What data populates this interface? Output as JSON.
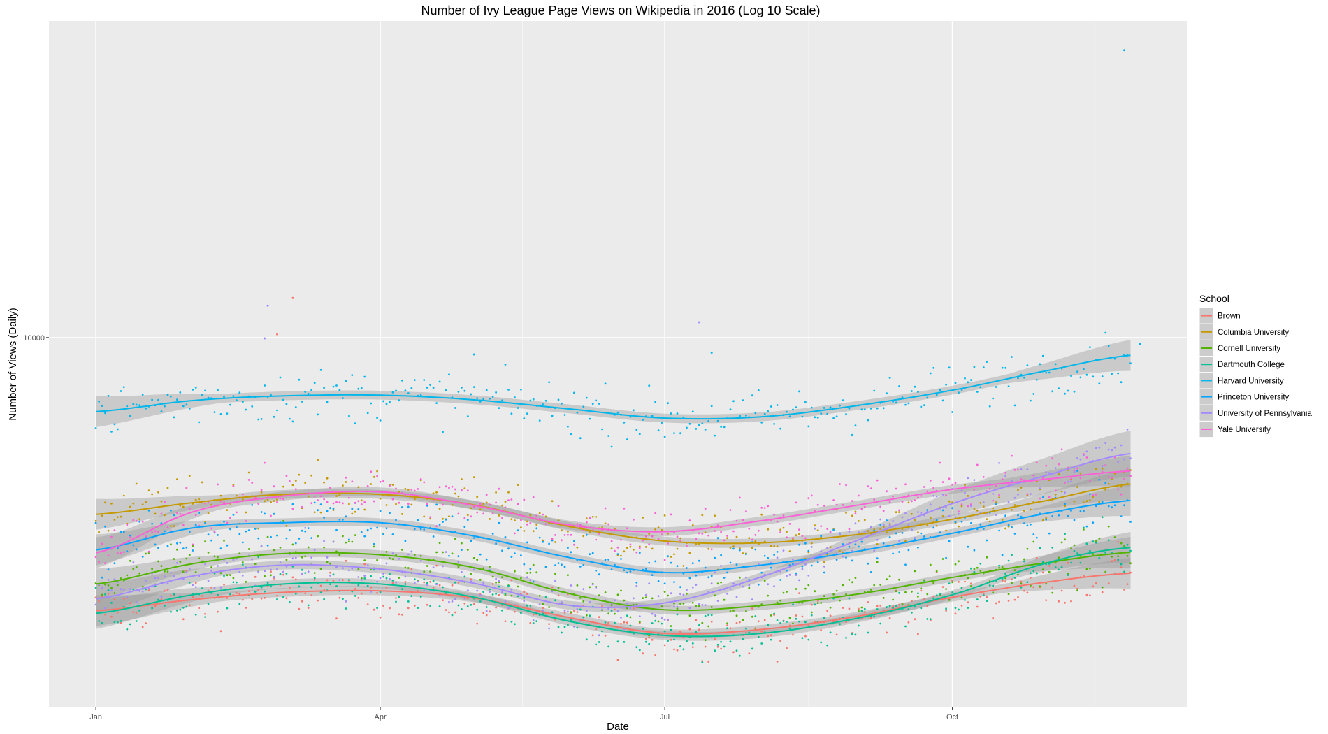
{
  "chart_data": {
    "type": "scatter",
    "title": "Number of Ivy League Page Views on Wikipedia in 2016 (Log 10 Scale)",
    "xlabel": "Date",
    "ylabel": "Number of Views (Daily)",
    "y_scale": "log10",
    "x_ticks": [
      {
        "date": "2016-01-01",
        "label": "Jan"
      },
      {
        "date": "2016-04-01",
        "label": "Apr"
      },
      {
        "date": "2016-07-01",
        "label": "Jul"
      },
      {
        "date": "2016-10-01",
        "label": "Oct"
      }
    ],
    "y_ticks": [
      10000
    ],
    "xlim": [
      "2015-12-17",
      "2016-12-15"
    ],
    "ylim": [
      1000,
      72000
    ],
    "grid": true,
    "legend_position": "right",
    "legend_title": "School",
    "smoother": "loess with confidence band",
    "series": [
      {
        "name": "Brown",
        "color": "#F8766D",
        "trend": [
          [
            "2016-01-01",
            1820
          ],
          [
            "2016-02-01",
            1950
          ],
          [
            "2016-03-01",
            2040
          ],
          [
            "2016-04-01",
            2060
          ],
          [
            "2016-05-01",
            1970
          ],
          [
            "2016-06-01",
            1740
          ],
          [
            "2016-07-01",
            1580
          ],
          [
            "2016-08-01",
            1620
          ],
          [
            "2016-09-01",
            1760
          ],
          [
            "2016-10-01",
            1980
          ],
          [
            "2016-11-01",
            2180
          ],
          [
            "2016-11-27",
            2300
          ]
        ]
      },
      {
        "name": "Columbia University",
        "color": "#C49A00",
        "trend": [
          [
            "2016-01-01",
            3320
          ],
          [
            "2016-02-01",
            3570
          ],
          [
            "2016-03-01",
            3760
          ],
          [
            "2016-04-01",
            3760
          ],
          [
            "2016-05-01",
            3520
          ],
          [
            "2016-06-01",
            3070
          ],
          [
            "2016-07-01",
            2810
          ],
          [
            "2016-08-01",
            2780
          ],
          [
            "2016-09-01",
            2930
          ],
          [
            "2016-10-01",
            3220
          ],
          [
            "2016-11-01",
            3630
          ],
          [
            "2016-11-27",
            4010
          ]
        ]
      },
      {
        "name": "Cornell University",
        "color": "#53B400",
        "trend": [
          [
            "2016-01-01",
            2150
          ],
          [
            "2016-02-01",
            2440
          ],
          [
            "2016-03-01",
            2600
          ],
          [
            "2016-04-01",
            2580
          ],
          [
            "2016-05-01",
            2380
          ],
          [
            "2016-06-01",
            2020
          ],
          [
            "2016-07-01",
            1830
          ],
          [
            "2016-08-01",
            1880
          ],
          [
            "2016-09-01",
            2020
          ],
          [
            "2016-10-01",
            2240
          ],
          [
            "2016-11-01",
            2460
          ],
          [
            "2016-11-27",
            2620
          ]
        ]
      },
      {
        "name": "Dartmouth College",
        "color": "#00C094",
        "trend": [
          [
            "2016-01-01",
            1790
          ],
          [
            "2016-02-01",
            2010
          ],
          [
            "2016-03-01",
            2150
          ],
          [
            "2016-04-01",
            2150
          ],
          [
            "2016-05-01",
            1980
          ],
          [
            "2016-06-01",
            1700
          ],
          [
            "2016-07-01",
            1560
          ],
          [
            "2016-08-01",
            1580
          ],
          [
            "2016-09-01",
            1740
          ],
          [
            "2016-10-01",
            2010
          ],
          [
            "2016-11-01",
            2460
          ],
          [
            "2016-11-27",
            2700
          ]
        ]
      },
      {
        "name": "Harvard University",
        "color": "#00B6EB",
        "trend": [
          [
            "2016-01-01",
            6300
          ],
          [
            "2016-02-01",
            6750
          ],
          [
            "2016-03-01",
            6950
          ],
          [
            "2016-04-01",
            6980
          ],
          [
            "2016-05-01",
            6780
          ],
          [
            "2016-06-01",
            6400
          ],
          [
            "2016-07-01",
            6050
          ],
          [
            "2016-08-01",
            6100
          ],
          [
            "2016-09-01",
            6550
          ],
          [
            "2016-10-01",
            7200
          ],
          [
            "2016-11-01",
            8150
          ],
          [
            "2016-11-27",
            8950
          ]
        ]
      },
      {
        "name": "Princeton University",
        "color": "#06A4FF",
        "trend": [
          [
            "2016-01-01",
            2660
          ],
          [
            "2016-02-01",
            3050
          ],
          [
            "2016-03-01",
            3150
          ],
          [
            "2016-04-01",
            3150
          ],
          [
            "2016-05-01",
            2900
          ],
          [
            "2016-06-01",
            2530
          ],
          [
            "2016-07-01",
            2310
          ],
          [
            "2016-08-01",
            2420
          ],
          [
            "2016-09-01",
            2640
          ],
          [
            "2016-10-01",
            2950
          ],
          [
            "2016-11-01",
            3350
          ],
          [
            "2016-11-27",
            3620
          ]
        ]
      },
      {
        "name": "University of Pennsylvania",
        "color": "#A58AFF",
        "trend": [
          [
            "2016-01-01",
            1960
          ],
          [
            "2016-02-01",
            2260
          ],
          [
            "2016-03-01",
            2420
          ],
          [
            "2016-04-01",
            2360
          ],
          [
            "2016-05-01",
            2160
          ],
          [
            "2016-06-01",
            1880
          ],
          [
            "2016-07-01",
            1910
          ],
          [
            "2016-08-01",
            2250
          ],
          [
            "2016-09-01",
            2830
          ],
          [
            "2016-10-01",
            3550
          ],
          [
            "2016-11-01",
            4250
          ],
          [
            "2016-11-27",
            4850
          ]
        ]
      },
      {
        "name": "Yale University",
        "color": "#FB61D7",
        "trend": [
          [
            "2016-01-01",
            2610
          ],
          [
            "2016-02-01",
            3370
          ],
          [
            "2016-03-01",
            3720
          ],
          [
            "2016-04-01",
            3820
          ],
          [
            "2016-05-01",
            3510
          ],
          [
            "2016-06-01",
            3100
          ],
          [
            "2016-07-01",
            2980
          ],
          [
            "2016-08-01",
            3190
          ],
          [
            "2016-09-01",
            3520
          ],
          [
            "2016-10-01",
            3880
          ],
          [
            "2016-11-01",
            4140
          ],
          [
            "2016-11-27",
            4350
          ]
        ]
      }
    ],
    "outliers": [
      {
        "series": "Harvard University",
        "date": "2016-11-25",
        "value": 60000
      },
      {
        "series": "University of Pennsylvania",
        "date": "2016-02-25",
        "value": 12200
      },
      {
        "series": "Brown",
        "date": "2016-03-04",
        "value": 12800
      },
      {
        "series": "Brown",
        "date": "2016-02-28",
        "value": 10200
      },
      {
        "series": "University of Pennsylvania",
        "date": "2016-02-24",
        "value": 9950
      },
      {
        "series": "University of Pennsylvania",
        "date": "2016-07-12",
        "value": 11000
      },
      {
        "series": "Harvard University",
        "date": "2016-11-30",
        "value": 9600
      },
      {
        "series": "Harvard University",
        "date": "2016-05-01",
        "value": 9000
      },
      {
        "series": "Harvard University",
        "date": "2016-07-16",
        "value": 9100
      }
    ]
  }
}
